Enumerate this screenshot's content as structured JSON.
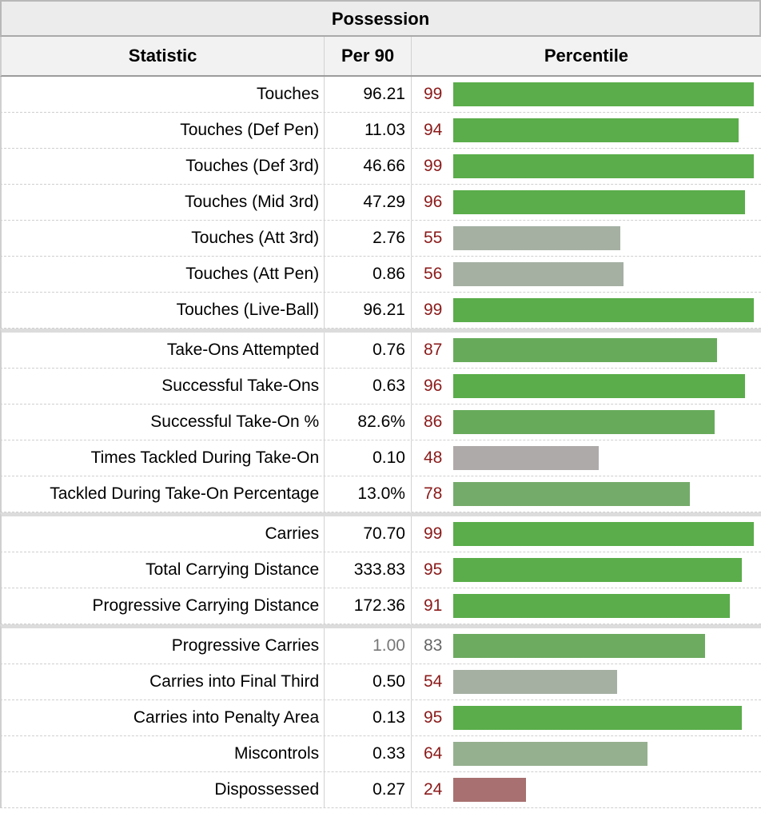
{
  "table": {
    "caption": "Possession",
    "headers": {
      "statistic": "Statistic",
      "per90": "Per 90",
      "percentile": "Percentile"
    },
    "groups": [
      [
        {
          "label": "Touches",
          "value": "96.21",
          "percentile": 99,
          "color": "#5aad4a"
        },
        {
          "label": "Touches (Def Pen)",
          "value": "11.03",
          "percentile": 94,
          "color": "#5aad4a"
        },
        {
          "label": "Touches (Def 3rd)",
          "value": "46.66",
          "percentile": 99,
          "color": "#5aad4a"
        },
        {
          "label": "Touches (Mid 3rd)",
          "value": "47.29",
          "percentile": 96,
          "color": "#5aad4a"
        },
        {
          "label": "Touches (Att 3rd)",
          "value": "2.76",
          "percentile": 55,
          "color": "#a5b0a3"
        },
        {
          "label": "Touches (Att Pen)",
          "value": "0.86",
          "percentile": 56,
          "color": "#a5b0a3"
        },
        {
          "label": "Touches (Live-Ball)",
          "value": "96.21",
          "percentile": 99,
          "color": "#5aad4a"
        }
      ],
      [
        {
          "label": "Take-Ons Attempted",
          "value": "0.76",
          "percentile": 87,
          "color": "#67ab5a"
        },
        {
          "label": "Successful Take-Ons",
          "value": "0.63",
          "percentile": 96,
          "color": "#5aad4a"
        },
        {
          "label": "Successful Take-On %",
          "value": "82.6%",
          "percentile": 86,
          "color": "#67ab5a"
        },
        {
          "label": "Times Tackled During Take-On",
          "value": "0.10",
          "percentile": 48,
          "color": "#afaaaa"
        },
        {
          "label": "Tackled During Take-On Percentage",
          "value": "13.0%",
          "percentile": 78,
          "color": "#75ab6a"
        }
      ],
      [
        {
          "label": "Carries",
          "value": "70.70",
          "percentile": 99,
          "color": "#5aad4a"
        },
        {
          "label": "Total Carrying Distance",
          "value": "333.83",
          "percentile": 95,
          "color": "#5aad4a"
        },
        {
          "label": "Progressive Carrying Distance",
          "value": "172.36",
          "percentile": 91,
          "color": "#5aad4a"
        }
      ],
      [
        {
          "label": "Progressive Carries",
          "value": "1.00",
          "percentile": 83,
          "color": "#6dab60",
          "muted": true
        },
        {
          "label": "Carries into Final Third",
          "value": "0.50",
          "percentile": 54,
          "color": "#a5b0a3"
        },
        {
          "label": "Carries into Penalty Area",
          "value": "0.13",
          "percentile": 95,
          "color": "#5aad4a"
        },
        {
          "label": "Miscontrols",
          "value": "0.33",
          "percentile": 64,
          "color": "#95b08f"
        },
        {
          "label": "Dispossessed",
          "value": "0.27",
          "percentile": 24,
          "color": "#a87070"
        }
      ]
    ]
  }
}
